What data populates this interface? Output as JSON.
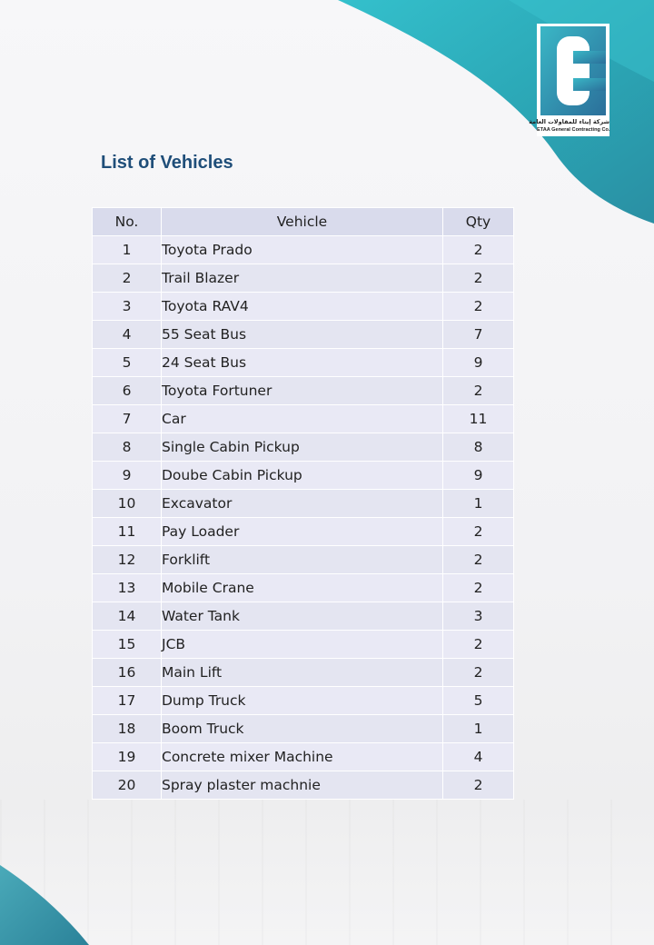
{
  "title": "List of Vehicles",
  "logo": {
    "arabic_text": "شركة إيتاء للمقاولات العامة",
    "english_text": "ETAA General Contracting Co."
  },
  "colors": {
    "accent_teal": "#2aa7b6",
    "title_blue": "#1f4e79",
    "header_bg": "#d9dbec",
    "row_bg": "#e9e9f5"
  },
  "table": {
    "headers": {
      "no": "No.",
      "vehicle": "Vehicle",
      "qty": "Qty"
    },
    "rows": [
      {
        "no": "1",
        "vehicle": "Toyota Prado",
        "qty": "2"
      },
      {
        "no": "2",
        "vehicle": "Trail Blazer",
        "qty": "2"
      },
      {
        "no": "3",
        "vehicle": "Toyota RAV4",
        "qty": "2"
      },
      {
        "no": "4",
        "vehicle": "55 Seat Bus",
        "qty": "7"
      },
      {
        "no": "5",
        "vehicle": "24 Seat Bus",
        "qty": "9"
      },
      {
        "no": "6",
        "vehicle": "Toyota Fortuner",
        "qty": "2"
      },
      {
        "no": "7",
        "vehicle": "Car",
        "qty": "11"
      },
      {
        "no": "8",
        "vehicle": "Single Cabin Pickup",
        "qty": "8"
      },
      {
        "no": "9",
        "vehicle": "Doube Cabin Pickup",
        "qty": "9"
      },
      {
        "no": "10",
        "vehicle": "Excavator",
        "qty": "1"
      },
      {
        "no": "11",
        "vehicle": "Pay Loader",
        "qty": "2"
      },
      {
        "no": "12",
        "vehicle": "Forklift",
        "qty": "2"
      },
      {
        "no": "13",
        "vehicle": "Mobile Crane",
        "qty": "2"
      },
      {
        "no": "14",
        "vehicle": "Water Tank",
        "qty": "3"
      },
      {
        "no": "15",
        "vehicle": "JCB",
        "qty": "2"
      },
      {
        "no": "16",
        "vehicle": "Main Lift",
        "qty": "2"
      },
      {
        "no": "17",
        "vehicle": "Dump Truck",
        "qty": "5"
      },
      {
        "no": "18",
        "vehicle": "Boom Truck",
        "qty": "1"
      },
      {
        "no": "19",
        "vehicle": "Concrete mixer Machine",
        "qty": "4"
      },
      {
        "no": "20",
        "vehicle": "Spray plaster machnie",
        "qty": "2"
      }
    ]
  }
}
